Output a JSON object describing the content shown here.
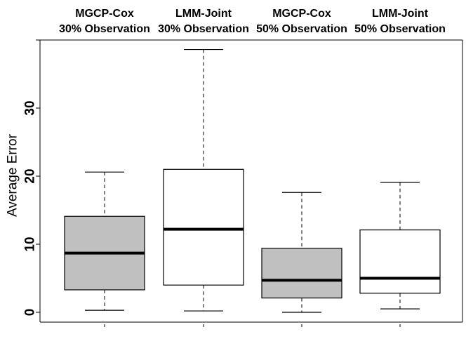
{
  "chart_data": {
    "type": "boxplot",
    "title": "",
    "xlabel": "",
    "ylabel": "Average Error",
    "ylim": [
      -1.5,
      40
    ],
    "yticks": [
      0,
      10,
      20,
      30
    ],
    "grid": false,
    "categories": [
      [
        "MGCP-Cox",
        "30% Observation"
      ],
      [
        "LMM-Joint",
        "30% Observation"
      ],
      [
        "MGCP-Cox",
        "50% Observation"
      ],
      [
        "LMM-Joint",
        "50% Observation"
      ]
    ],
    "boxes": [
      {
        "min": 0.3,
        "q1": 3.3,
        "median": 8.7,
        "q3": 14.1,
        "max": 20.6,
        "fill": "#c0c0c0"
      },
      {
        "min": 0.2,
        "q1": 4.0,
        "median": 12.2,
        "q3": 21.0,
        "max": 38.6,
        "fill": "#ffffff"
      },
      {
        "min": 0.0,
        "q1": 2.1,
        "median": 4.7,
        "q3": 9.4,
        "max": 17.6,
        "fill": "#c0c0c0"
      },
      {
        "min": 0.5,
        "q1": 2.8,
        "median": 5.0,
        "q3": 12.1,
        "max": 19.1,
        "fill": "#ffffff"
      }
    ]
  }
}
